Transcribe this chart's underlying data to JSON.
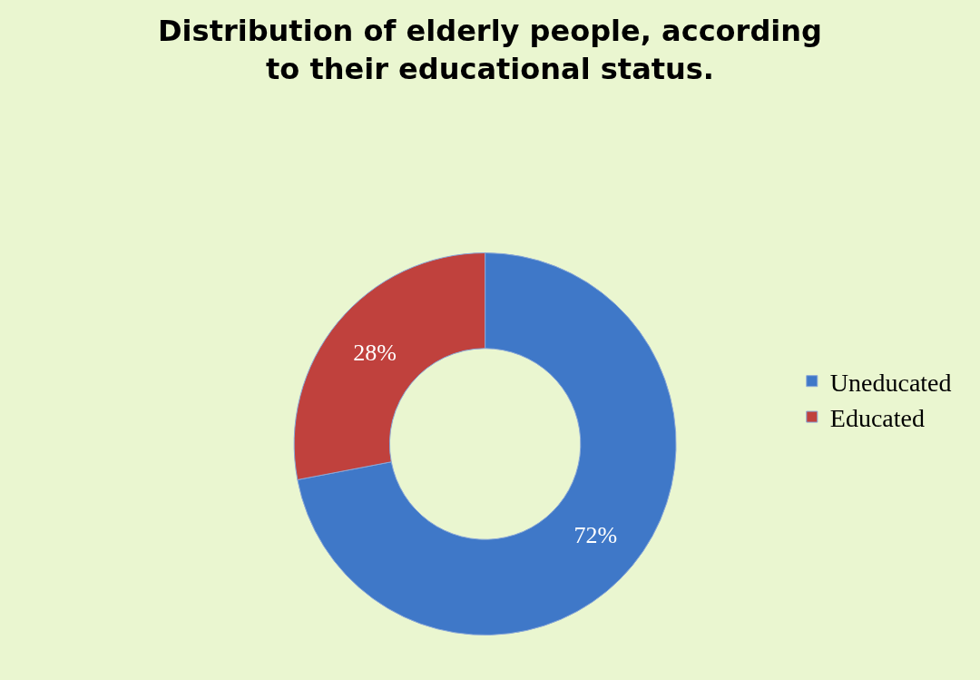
{
  "chart_data": {
    "type": "donut",
    "title": "Distribution of elderly people, according\nto their educational status.",
    "categories": [
      "Uneducated",
      "Educated"
    ],
    "values": [
      72,
      28
    ],
    "value_labels": [
      "72%",
      "28%"
    ],
    "colors": [
      "#3f78c8",
      "#c0413d"
    ],
    "legend": "right"
  }
}
